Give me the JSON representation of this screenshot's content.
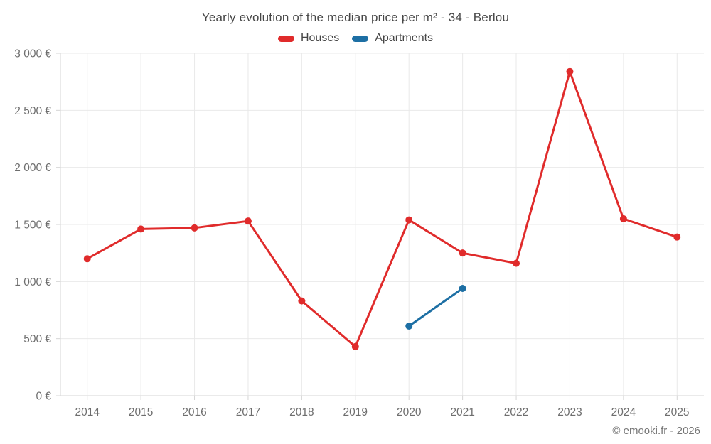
{
  "title": "Yearly evolution of the median price per m² - 34 - Berlou",
  "legend": [
    {
      "label": "Houses",
      "color": "#e02b2b"
    },
    {
      "label": "Apartments",
      "color": "#1d6fa4"
    }
  ],
  "footer": {
    "text": "© emooki.fr - 2026"
  },
  "colors": {
    "background": "#ffffff",
    "grid": "#e9e9e9",
    "axis": "#d5d5d5",
    "tick_label": "#6e6e6e",
    "title": "#474747",
    "footer": "#767676"
  },
  "chart_data": {
    "type": "line",
    "title": "Yearly evolution of the median price per m² - 34 - Berlou",
    "categories": [
      "2014",
      "2015",
      "2016",
      "2017",
      "2018",
      "2019",
      "2020",
      "2021",
      "2022",
      "2023",
      "2024",
      "2025"
    ],
    "series": [
      {
        "name": "Houses",
        "color": "#e02b2b",
        "values": [
          1200,
          1460,
          1470,
          1530,
          830,
          430,
          1540,
          1250,
          1160,
          2840,
          1550,
          1390
        ]
      },
      {
        "name": "Apartments",
        "color": "#1d6fa4",
        "values": [
          null,
          null,
          null,
          null,
          null,
          null,
          610,
          940,
          null,
          null,
          null,
          null
        ]
      }
    ],
    "xlabel": "",
    "ylabel": "",
    "ylim": [
      0,
      3000
    ],
    "ytick_step": 500,
    "ytick_labels": [
      "0 €",
      "500 €",
      "1 000 €",
      "1 500 €",
      "2 000 €",
      "2 500 €",
      "3 000 €"
    ],
    "grid": true,
    "legend_position": "top",
    "marker_radius": 5,
    "line_width": 3
  }
}
